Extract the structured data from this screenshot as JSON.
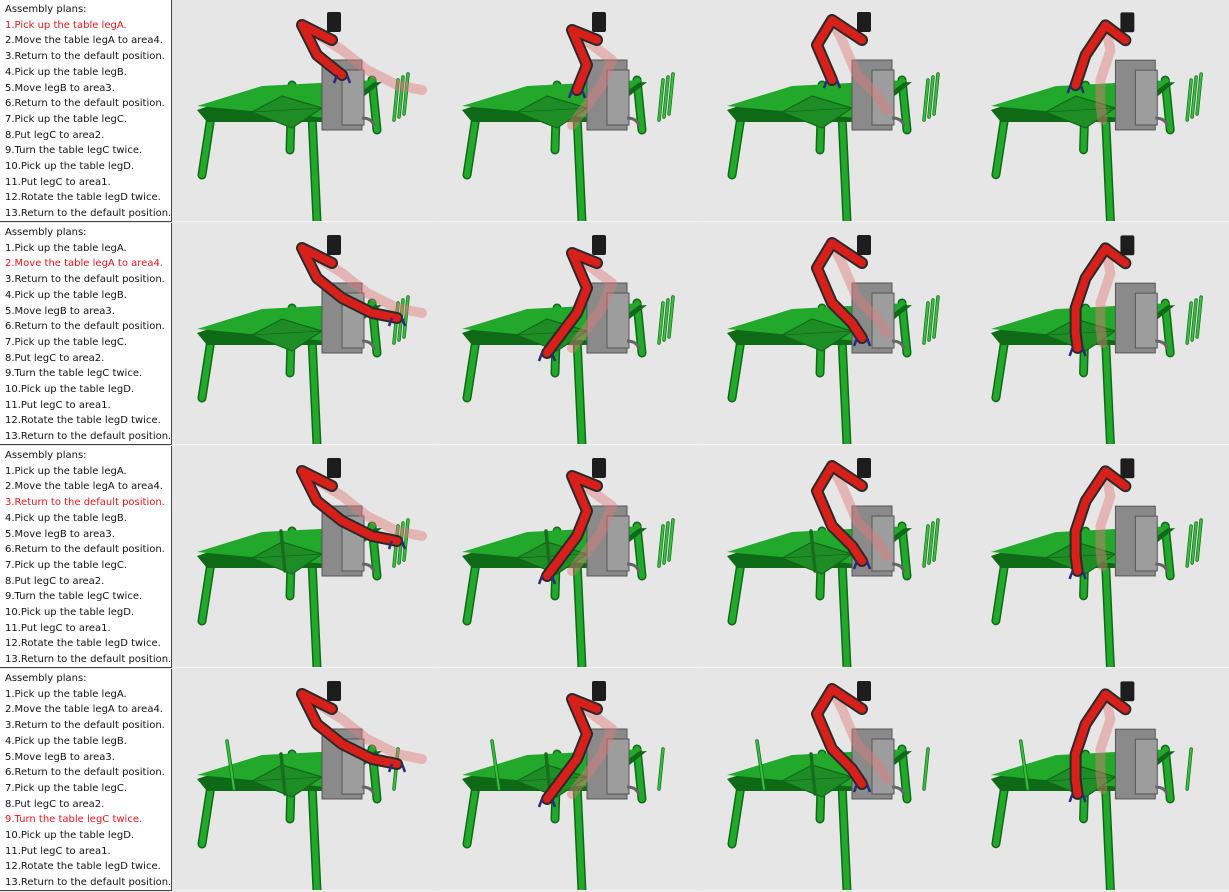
{
  "rows": [
    {
      "title": "Assembly plans:",
      "active_step": 0,
      "steps": [
        "1.Pick up the table legA.",
        "2.Move the table legA to area4.",
        "3.Return to the default position.",
        "4.Pick up the table legB.",
        "5.Move legB to area3.",
        "6.Return to the default position.",
        "7.Pick up the table legC.",
        "8.Put legC to area2.",
        "9.Turn the table legC twice.",
        "10.Pick up the table legD.",
        "11.Put legC to area1.",
        "12.Rotate the table legD twice.",
        "13.Return to the default position."
      ]
    },
    {
      "title": "Assembly plans:",
      "active_step": 1,
      "steps": [
        "1.Pick up the table legA.",
        "2.Move the table legA to area4.",
        "3.Return to the default position.",
        "4.Pick up the table legB.",
        "5.Move legB to area3.",
        "6.Return to the default position.",
        "7.Pick up the table legC.",
        "8.Put legC to area2.",
        "9.Turn the table legC twice.",
        "10.Pick up the table legD.",
        "11.Put legC to area1.",
        "12.Rotate the table legD twice.",
        "13.Return to the default position."
      ]
    },
    {
      "title": "Assembly plans:",
      "active_step": 2,
      "steps": [
        "1.Pick up the table legA.",
        "2.Move the table legA to area4.",
        "3.Return to the default position.",
        "4.Pick up the table legB.",
        "5.Move legB to area3.",
        "6.Return to the default position.",
        "7.Pick up the table legC.",
        "8.Put legC to area2.",
        "9.Turn the table legC twice.",
        "10.Pick up the table legD.",
        "11.Put legC to area1.",
        "12.Rotate the table legD twice.",
        "13.Return to the default position."
      ]
    },
    {
      "title": "Assembly plans:",
      "active_step": 8,
      "steps": [
        "1.Pick up the table legA.",
        "2.Move the table legA to area4.",
        "3.Return to the default position.",
        "4.Pick up the table legB.",
        "5.Move legB to area3.",
        "6.Return to the default position.",
        "7.Pick up the table legC.",
        "8.Put legC to area2.",
        "9.Turn the table legC twice.",
        "10.Pick up the table legD.",
        "11.Put legC to area1.",
        "12.Rotate the table legD twice.",
        "13.Return to the default position."
      ]
    }
  ],
  "colors": {
    "active_step": "#e8161c",
    "table_green": "#22a82a",
    "table_dark": "#0f6a18",
    "robot_red": "#d8201a",
    "robot_dark": "#2a2a2a",
    "pedestal": "#8a8a8a",
    "background": "#e6e6e6"
  },
  "icons": {
    "scene": "robot-arm-table-assembly-scene"
  }
}
